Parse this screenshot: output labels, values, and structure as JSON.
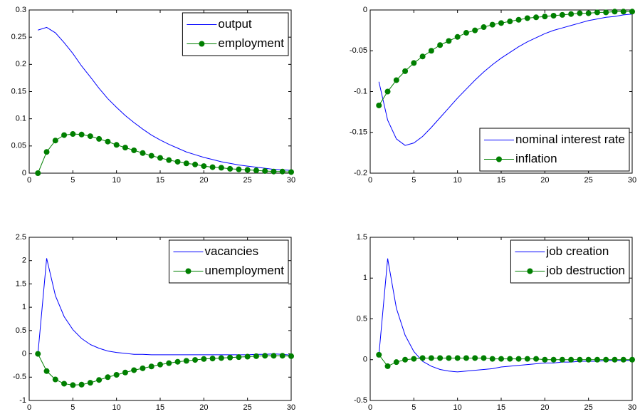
{
  "chart_data": [
    {
      "type": "line",
      "legend": "upper right",
      "x": [
        1,
        2,
        3,
        4,
        5,
        6,
        7,
        8,
        9,
        10,
        11,
        12,
        13,
        14,
        15,
        16,
        17,
        18,
        19,
        20,
        21,
        22,
        23,
        24,
        25,
        26,
        27,
        28,
        29,
        30
      ],
      "xlim": [
        0,
        30
      ],
      "xticks": [
        0,
        5,
        10,
        15,
        20,
        25,
        30
      ],
      "ylim": [
        0,
        0.3
      ],
      "yticks": [
        0,
        0.05,
        0.1,
        0.15,
        0.2,
        0.25,
        0.3
      ],
      "series": [
        {
          "name": "output",
          "color": "#0000ff",
          "marker": false,
          "values": [
            0.263,
            0.268,
            0.258,
            0.24,
            0.22,
            0.197,
            0.177,
            0.156,
            0.137,
            0.121,
            0.106,
            0.093,
            0.081,
            0.07,
            0.061,
            0.053,
            0.046,
            0.039,
            0.034,
            0.029,
            0.025,
            0.021,
            0.018,
            0.015,
            0.013,
            0.011,
            0.009,
            0.007,
            0.006,
            0.005
          ]
        },
        {
          "name": "employment",
          "color": "#007f00",
          "marker": true,
          "values": [
            0,
            0.039,
            0.06,
            0.07,
            0.072,
            0.071,
            0.068,
            0.063,
            0.058,
            0.052,
            0.047,
            0.042,
            0.037,
            0.032,
            0.028,
            0.024,
            0.021,
            0.018,
            0.016,
            0.013,
            0.011,
            0.01,
            0.008,
            0.007,
            0.006,
            0.005,
            0.004,
            0.003,
            0.003,
            0.002
          ]
        }
      ]
    },
    {
      "type": "line",
      "legend": "lower right",
      "x": [
        1,
        2,
        3,
        4,
        5,
        6,
        7,
        8,
        9,
        10,
        11,
        12,
        13,
        14,
        15,
        16,
        17,
        18,
        19,
        20,
        21,
        22,
        23,
        24,
        25,
        26,
        27,
        28,
        29,
        30
      ],
      "xlim": [
        0,
        30
      ],
      "xticks": [
        0,
        5,
        10,
        15,
        20,
        25,
        30
      ],
      "ylim": [
        -0.2,
        0
      ],
      "yticks": [
        -0.2,
        -0.15,
        -0.1,
        -0.05,
        0
      ],
      "series": [
        {
          "name": "nominal interest rate",
          "color": "#0000ff",
          "marker": false,
          "values": [
            -0.088,
            -0.135,
            -0.158,
            -0.166,
            -0.163,
            -0.155,
            -0.144,
            -0.132,
            -0.12,
            -0.108,
            -0.097,
            -0.086,
            -0.076,
            -0.067,
            -0.059,
            -0.052,
            -0.045,
            -0.039,
            -0.034,
            -0.029,
            -0.025,
            -0.022,
            -0.019,
            -0.016,
            -0.013,
            -0.011,
            -0.009,
            -0.008,
            -0.006,
            -0.005
          ]
        },
        {
          "name": "inflation",
          "color": "#007f00",
          "marker": true,
          "values": [
            -0.117,
            -0.1,
            -0.086,
            -0.075,
            -0.065,
            -0.057,
            -0.05,
            -0.043,
            -0.038,
            -0.033,
            -0.028,
            -0.025,
            -0.021,
            -0.018,
            -0.016,
            -0.014,
            -0.012,
            -0.01,
            -0.009,
            -0.008,
            -0.007,
            -0.006,
            -0.005,
            -0.004,
            -0.004,
            -0.003,
            -0.003,
            -0.002,
            -0.002,
            -0.002
          ]
        }
      ]
    },
    {
      "type": "line",
      "legend": "upper right",
      "x": [
        1,
        2,
        3,
        4,
        5,
        6,
        7,
        8,
        9,
        10,
        11,
        12,
        13,
        14,
        15,
        16,
        17,
        18,
        19,
        20,
        21,
        22,
        23,
        24,
        25,
        26,
        27,
        28,
        29,
        30
      ],
      "xlim": [
        0,
        30
      ],
      "xticks": [
        0,
        5,
        10,
        15,
        20,
        25,
        30
      ],
      "ylim": [
        -1,
        2.5
      ],
      "yticks": [
        -1,
        -0.5,
        0,
        0.5,
        1,
        1.5,
        2,
        2.5
      ],
      "series": [
        {
          "name": "vacancies",
          "color": "#0000ff",
          "marker": false,
          "values": [
            0,
            2.05,
            1.25,
            0.8,
            0.52,
            0.33,
            0.2,
            0.12,
            0.06,
            0.03,
            0.01,
            -0.01,
            -0.01,
            -0.02,
            -0.02,
            -0.02,
            -0.02,
            -0.02,
            -0.02,
            -0.02,
            -0.02,
            -0.02,
            -0.02,
            -0.02,
            -0.02,
            -0.01,
            -0.01,
            0,
            -0.01,
            -0.03
          ]
        },
        {
          "name": "unemployment",
          "color": "#007f00",
          "marker": true,
          "values": [
            0,
            -0.37,
            -0.55,
            -0.64,
            -0.67,
            -0.66,
            -0.62,
            -0.56,
            -0.5,
            -0.45,
            -0.4,
            -0.35,
            -0.31,
            -0.27,
            -0.23,
            -0.2,
            -0.17,
            -0.15,
            -0.13,
            -0.11,
            -0.1,
            -0.09,
            -0.08,
            -0.07,
            -0.06,
            -0.05,
            -0.04,
            -0.04,
            -0.04,
            -0.05
          ]
        }
      ]
    },
    {
      "type": "line",
      "legend": "upper right",
      "x": [
        1,
        2,
        3,
        4,
        5,
        6,
        7,
        8,
        9,
        10,
        11,
        12,
        13,
        14,
        15,
        16,
        17,
        18,
        19,
        20,
        21,
        22,
        23,
        24,
        25,
        26,
        27,
        28,
        29,
        30
      ],
      "xlim": [
        0,
        30
      ],
      "xticks": [
        0,
        5,
        10,
        15,
        20,
        25,
        30
      ],
      "ylim": [
        -0.5,
        1.5
      ],
      "yticks": [
        -0.5,
        0,
        0.5,
        1,
        1.5
      ],
      "series": [
        {
          "name": "job creation",
          "color": "#0000ff",
          "marker": false,
          "values": [
            0.06,
            1.24,
            0.63,
            0.3,
            0.1,
            -0.02,
            -0.08,
            -0.12,
            -0.14,
            -0.15,
            -0.14,
            -0.13,
            -0.12,
            -0.11,
            -0.09,
            -0.08,
            -0.07,
            -0.06,
            -0.05,
            -0.04,
            -0.04,
            -0.03,
            -0.03,
            -0.02,
            -0.02,
            -0.02,
            -0.01,
            -0.01,
            -0.01,
            -0.01
          ]
        },
        {
          "name": "job destruction",
          "color": "#007f00",
          "marker": true,
          "values": [
            0.06,
            -0.08,
            -0.03,
            0,
            0.01,
            0.02,
            0.02,
            0.02,
            0.02,
            0.02,
            0.02,
            0.02,
            0.02,
            0.01,
            0.01,
            0.01,
            0.01,
            0.01,
            0.01,
            0,
            0,
            0,
            0,
            0,
            0,
            0,
            0,
            0,
            0,
            0
          ]
        }
      ]
    }
  ]
}
